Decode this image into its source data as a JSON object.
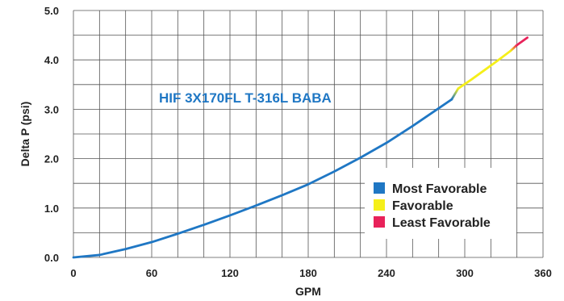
{
  "chart_data": {
    "type": "line",
    "title": "",
    "xlabel": "GPM",
    "ylabel": "Delta P (psi)",
    "xlim": [
      0,
      360
    ],
    "ylim": [
      0,
      5
    ],
    "x_ticks": [
      "0",
      "60",
      "120",
      "180",
      "240",
      "300",
      "360"
    ],
    "y_ticks": [
      "0.0",
      "1.0",
      "2.0",
      "3.0",
      "4.0",
      "5.0"
    ],
    "x_tick_values": [
      0,
      60,
      120,
      180,
      240,
      300,
      360
    ],
    "y_tick_values": [
      0,
      1,
      2,
      3,
      4,
      5
    ],
    "grid": {
      "x_step": 20,
      "y_step": 0.5
    },
    "annotation": "HIF 3X170FL T-316L BABA",
    "series": [
      {
        "name": "HIF 3X170FL T-316L BABA",
        "x": [
          0,
          20,
          40,
          60,
          80,
          100,
          120,
          140,
          160,
          180,
          200,
          220,
          240,
          260,
          280,
          290
        ],
        "y": [
          0,
          0.05,
          0.17,
          0.31,
          0.48,
          0.66,
          0.85,
          1.05,
          1.26,
          1.48,
          1.74,
          2.02,
          2.32,
          2.66,
          3.02,
          3.2
        ]
      }
    ],
    "zones": [
      {
        "label": "Most Favorable",
        "color": "#1f77c4",
        "x_range": [
          0,
          290
        ]
      },
      {
        "label": "Favorable",
        "color": "#f5ef1a",
        "x_range": [
          295,
          335
        ]
      },
      {
        "label": "Least Favorable",
        "color": "#e8225a",
        "x_range": [
          340,
          348
        ]
      }
    ],
    "segments": [
      {
        "zone": "Most Favorable",
        "x": [
          0,
          20,
          40,
          60,
          80,
          100,
          120,
          140,
          160,
          180,
          200,
          220,
          240,
          260,
          280,
          290
        ],
        "y": [
          0,
          0.05,
          0.17,
          0.31,
          0.48,
          0.66,
          0.85,
          1.05,
          1.26,
          1.48,
          1.74,
          2.02,
          2.32,
          2.66,
          3.02,
          3.2
        ]
      },
      {
        "zone": "Favorable",
        "x": [
          295,
          305,
          315,
          325,
          335
        ],
        "y": [
          3.42,
          3.6,
          3.79,
          3.98,
          4.18
        ]
      },
      {
        "zone": "Least Favorable",
        "x": [
          340,
          348
        ],
        "y": [
          4.3,
          4.45
        ]
      }
    ],
    "legend": {
      "position": "bottom-right",
      "entries": [
        {
          "label": "Most Favorable",
          "color": "#1f77c4"
        },
        {
          "label": "Favorable",
          "color": "#f5ef1a"
        },
        {
          "label": "Least Favorable",
          "color": "#e8225a"
        }
      ]
    }
  }
}
